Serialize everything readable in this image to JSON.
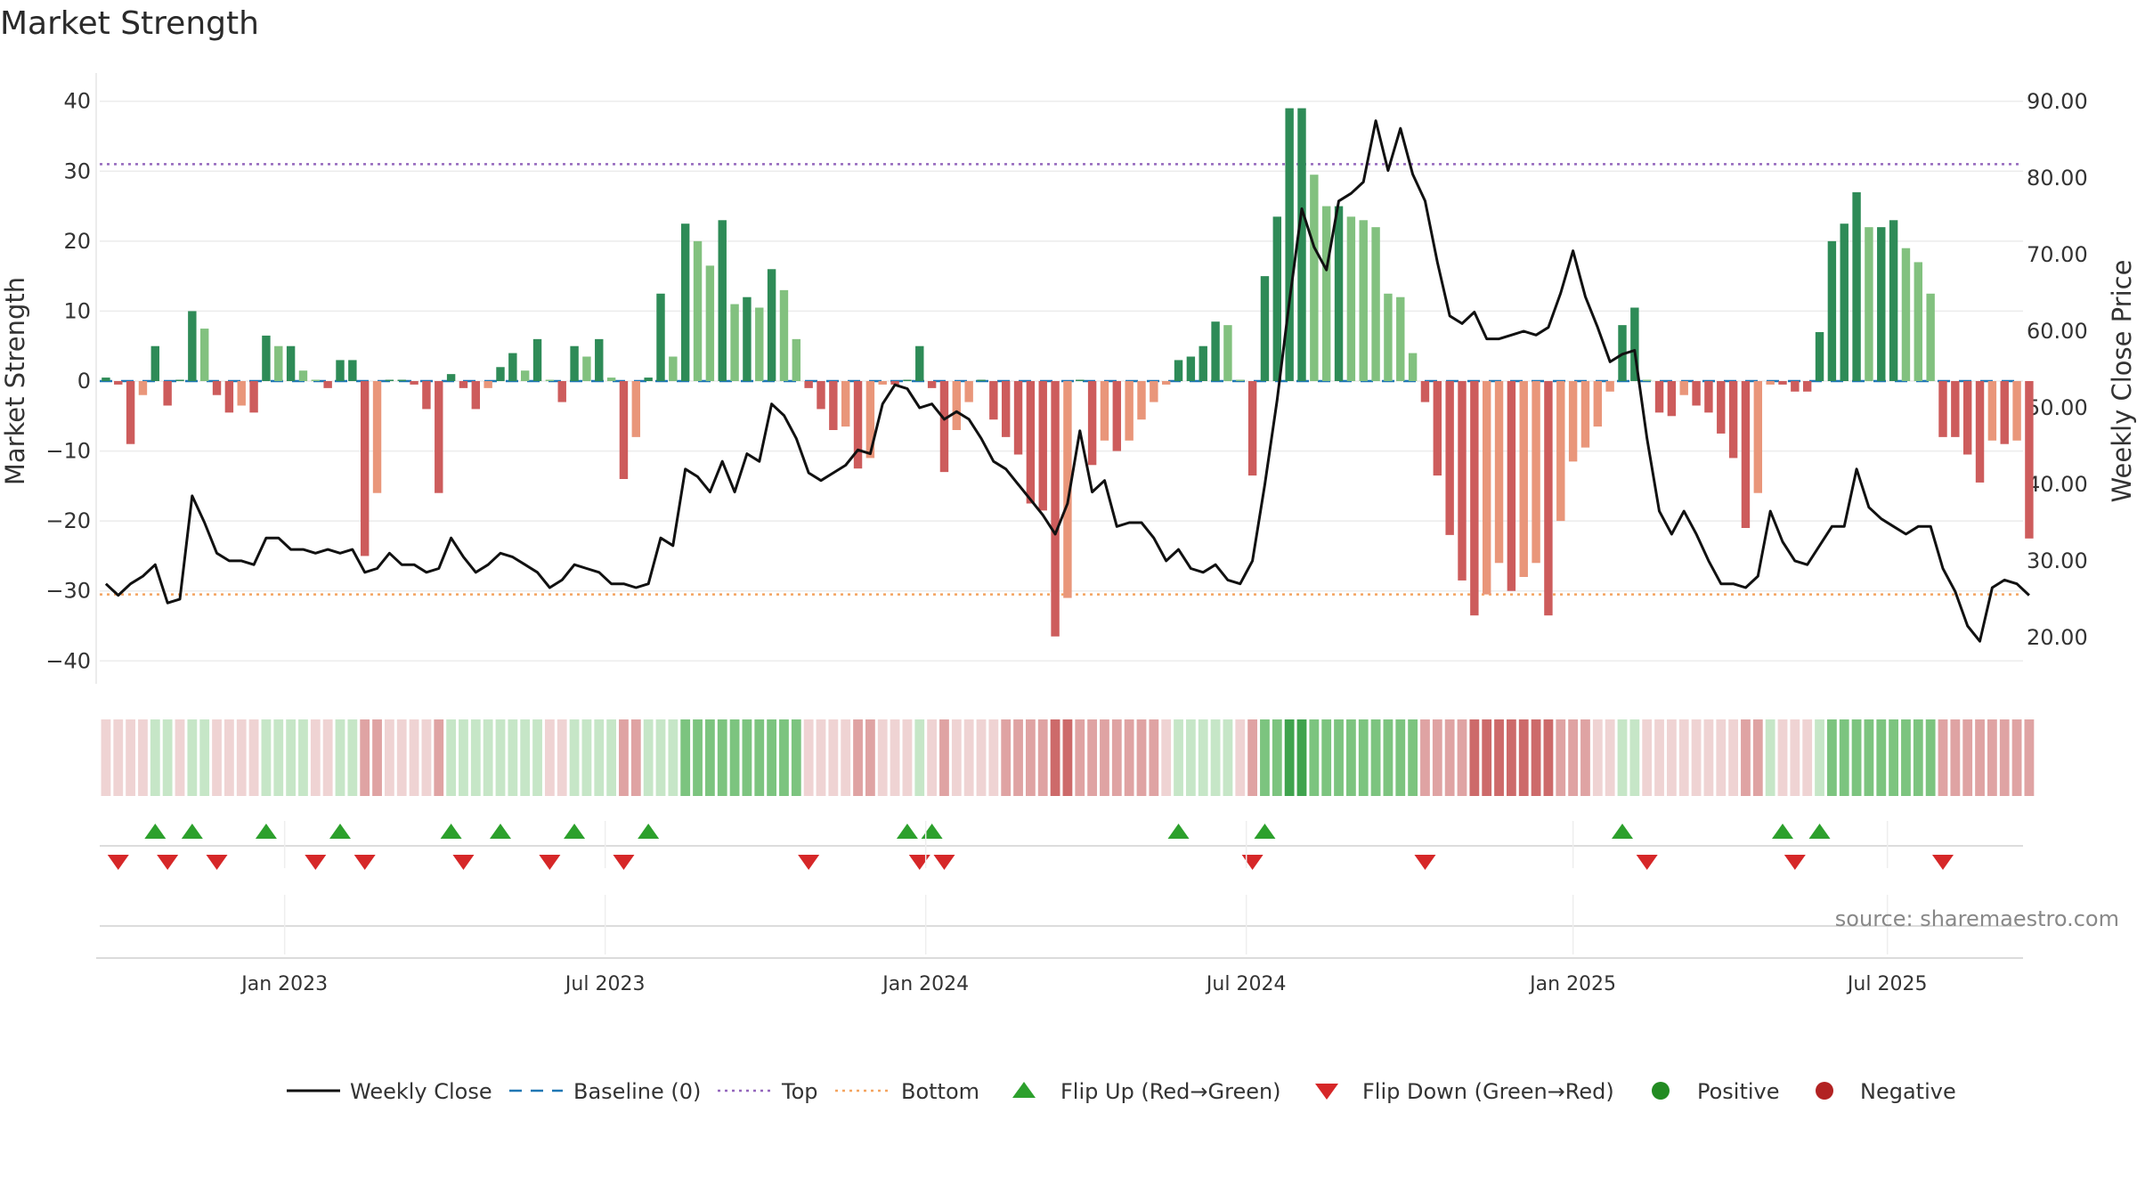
{
  "title": "Market Strength",
  "source": "source: sharemaestro.com",
  "colors": {
    "strong_up": "#2e8b57",
    "mild_up": "#82c17f",
    "strong_down": "#cd5c5c",
    "mild_down": "#e9967a",
    "close": "#111111",
    "baseline": "#1f77b4",
    "top": "#9467bd",
    "bottom": "#f4a460",
    "flip_up": "#2ca02c",
    "flip_down": "#d62728",
    "positive": "#228b22",
    "negative": "#b22222"
  },
  "chart_data": {
    "type": "bar",
    "left_axis": {
      "label": "Market Strength",
      "ylim": [
        -42,
        42
      ],
      "ticks": [
        40,
        30,
        20,
        10,
        0,
        -10,
        -20,
        -30,
        -40
      ],
      "tick_labels": [
        "40",
        "30",
        "20",
        "10",
        "0",
        "−10",
        "−20",
        "−30",
        "−40"
      ]
    },
    "right_axis": {
      "label": "Weekly Close Price",
      "ylim": [
        17.2,
        92.8
      ],
      "ticks": [
        90,
        80,
        70,
        60,
        50,
        40,
        30,
        20
      ],
      "tick_labels": [
        "90.00",
        "80.00",
        "70.00",
        "60.00",
        "50.00",
        "40.00",
        "30.00",
        "20.00"
      ]
    },
    "x_range": [
      0,
      156
    ],
    "x_ticks": [
      {
        "label": "Jan 2023",
        "week": 15
      },
      {
        "label": "Jul 2023",
        "week": 41
      },
      {
        "label": "Jan 2024",
        "week": 67
      },
      {
        "label": "Jul 2024",
        "week": 93
      },
      {
        "label": "Jan 2025",
        "week": 119.5
      },
      {
        "label": "Jul 2025",
        "week": 145
      }
    ],
    "strength": [
      0.5,
      -0.5,
      -9,
      -2,
      5,
      -3.5,
      0,
      10,
      7.5,
      -2,
      -4.5,
      -3.5,
      -4.5,
      6.5,
      5,
      5,
      1.5,
      0,
      -1,
      3,
      3,
      -25,
      -16,
      0,
      0,
      -0.5,
      -4,
      -16,
      1,
      -1,
      -4,
      -1,
      2,
      4,
      1.5,
      6,
      0,
      -3,
      5,
      3.5,
      6,
      0.5,
      -14,
      -8,
      0.5,
      12.5,
      3.5,
      22.5,
      20,
      16.5,
      23,
      11,
      12,
      10.5,
      16,
      13,
      6,
      -1,
      -4,
      -7,
      -6.5,
      -12.5,
      -11,
      -0.5,
      -0.5,
      0,
      5,
      -1,
      -13,
      -7,
      -3,
      0,
      -5.5,
      -8,
      -10.5,
      -17.5,
      -18.5,
      -36.5,
      -31,
      0,
      -12,
      -8.5,
      -10,
      -8.5,
      -5.5,
      -3,
      -0.5,
      3,
      3.5,
      5,
      8.5,
      8,
      0,
      -13.5,
      15,
      23.5,
      39,
      39,
      29.5,
      25,
      25,
      23.5,
      23,
      22,
      12.5,
      12,
      4,
      -3,
      -13.5,
      -22,
      -28.5,
      -33.5,
      -30.5,
      -26,
      -30,
      -28,
      -26,
      -33.5,
      -20,
      -11.5,
      -9.5,
      -6.5,
      -1.5,
      8,
      10.5,
      0,
      -4.5,
      -5,
      -2,
      -3.5,
      -4.5,
      -7.5,
      -11,
      -21,
      -16,
      -0.5,
      -0.5,
      -1.5,
      -1.5,
      7,
      20,
      22.5,
      27,
      22,
      22,
      23,
      19,
      17,
      12.5,
      -8,
      -8,
      -10.5,
      -14.5,
      -8.5,
      -9,
      -8.5,
      -22.5
    ],
    "close": [
      27,
      25.5,
      27,
      28,
      29.5,
      24.5,
      25,
      38.5,
      35,
      31,
      30,
      30,
      29.5,
      33,
      33,
      31.5,
      31.5,
      31,
      31.5,
      31,
      31.5,
      28.5,
      29,
      31,
      29.5,
      29.5,
      28.5,
      29,
      33,
      30.5,
      28.5,
      29.5,
      31,
      30.5,
      29.5,
      28.5,
      26.5,
      27.5,
      29.5,
      29,
      28.5,
      27,
      27,
      26.5,
      27,
      33,
      32,
      42,
      41,
      39,
      43,
      39,
      44,
      43,
      50.5,
      49,
      46,
      41.5,
      40.5,
      41.5,
      42.5,
      44.5,
      44,
      50.5,
      53,
      52.5,
      50,
      50.5,
      48.5,
      49.5,
      48.5,
      46,
      43,
      42,
      40,
      38,
      36,
      33.5,
      37.5,
      47,
      39,
      40.5,
      34.5,
      35,
      35,
      33,
      30,
      31.5,
      29,
      28.5,
      29.5,
      27.5,
      27,
      30,
      40,
      51,
      64,
      76,
      71,
      68,
      77,
      78,
      79.5,
      87.5,
      81,
      86.5,
      80.5,
      77,
      69,
      62,
      61,
      62.5,
      59,
      59,
      59.5,
      60,
      59.5,
      60.5,
      65,
      70.5,
      64.5,
      60.5,
      56,
      57,
      57.5,
      46,
      36.5,
      33.5,
      36.5,
      33.5,
      30,
      27,
      27,
      26.5,
      28,
      36.5,
      32.5,
      30,
      29.5,
      32,
      34.5,
      34.5,
      42,
      37,
      35.5,
      34.5,
      33.5,
      34.5,
      34.5,
      29,
      26,
      21.5,
      19.5,
      26.5,
      27.5,
      27,
      25.5
    ],
    "sentiment_cells": [
      -1,
      -1,
      -1,
      -1,
      1,
      1,
      -1,
      1,
      1,
      -1,
      -1,
      -1,
      -1,
      1,
      1,
      1,
      1,
      -1,
      -1,
      1,
      1,
      -2,
      -2,
      -1,
      -1,
      -1,
      -1,
      -2,
      1,
      1,
      1,
      1,
      1,
      1,
      1,
      1,
      -1,
      -1,
      1,
      1,
      1,
      1,
      -2,
      -2,
      1,
      1,
      1,
      2,
      2,
      2,
      2,
      2,
      2,
      2,
      2,
      2,
      2,
      -1,
      -1,
      -1,
      -1,
      -2,
      -2,
      -1,
      -1,
      -1,
      1,
      -1,
      -2,
      -1,
      -1,
      -1,
      -1,
      -2,
      -2,
      -2,
      -2,
      -3,
      -3,
      -2,
      -2,
      -2,
      -2,
      -2,
      -2,
      -2,
      -1,
      1,
      1,
      1,
      1,
      1,
      -1,
      -2,
      2,
      2,
      3,
      3,
      2,
      2,
      2,
      2,
      2,
      2,
      2,
      2,
      2,
      -2,
      -2,
      -2,
      -2,
      -3,
      -3,
      -3,
      -3,
      -3,
      -3,
      -3,
      -2,
      -2,
      -2,
      -1,
      -1,
      1,
      1,
      -1,
      -1,
      -1,
      -1,
      -1,
      -1,
      -1,
      -1,
      -2,
      -2,
      1,
      -1,
      -1,
      -1,
      1,
      2,
      2,
      2,
      2,
      2,
      2,
      2,
      2,
      2,
      -2,
      -2,
      -2,
      -2,
      -2,
      -2,
      -2,
      -2
    ],
    "flip_up_weeks": [
      4,
      7,
      13,
      19,
      28,
      32,
      38,
      44,
      65,
      67,
      87,
      94,
      123,
      136,
      139
    ],
    "flip_down_weeks": [
      1,
      5,
      9,
      17,
      21,
      29,
      36,
      42,
      57,
      66,
      68,
      93,
      107,
      125,
      137,
      149
    ],
    "levels": {
      "baseline": 0,
      "top": 31,
      "bottom": -30.5
    },
    "legend": [
      {
        "kind": "line",
        "label": "Weekly Close"
      },
      {
        "kind": "dash",
        "label": "Baseline (0)"
      },
      {
        "kind": "dotted-top",
        "label": "Top"
      },
      {
        "kind": "dotted-bottom",
        "label": "Bottom"
      },
      {
        "kind": "tri-up",
        "label": "Flip Up (Red→Green)"
      },
      {
        "kind": "tri-down",
        "label": "Flip Down (Green→Red)"
      },
      {
        "kind": "dot-pos",
        "label": "Positive"
      },
      {
        "kind": "dot-neg",
        "label": "Negative"
      }
    ]
  }
}
